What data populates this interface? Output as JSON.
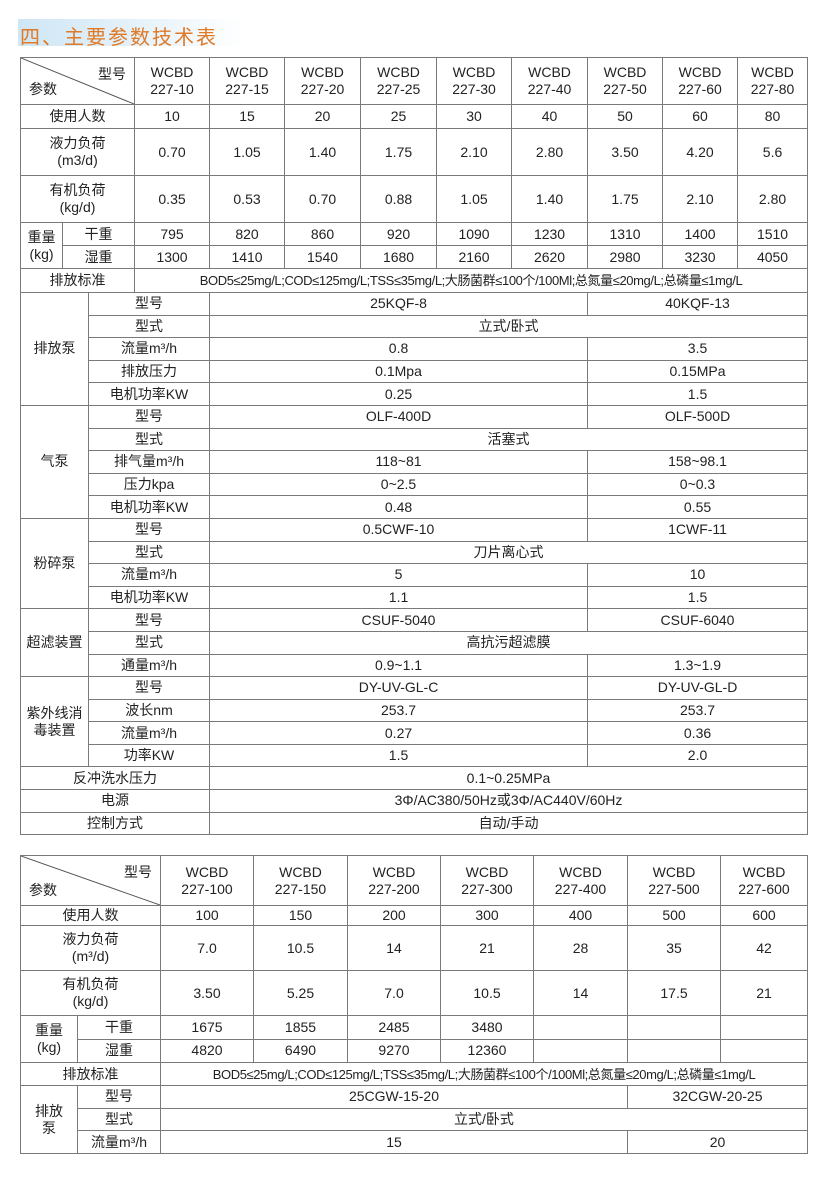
{
  "title": "四、主要参数技术表",
  "table1": {
    "header": {
      "model": "型号",
      "param": "参数",
      "models": [
        "WCBD\n227-10",
        "WCBD\n227-15",
        "WCBD\n227-20",
        "WCBD\n227-25",
        "WCBD\n227-30",
        "WCBD\n227-40",
        "WCBD\n227-50",
        "WCBD\n227-60",
        "WCBD\n227-80"
      ]
    },
    "rows": [
      {
        "label": "使用人数",
        "values": [
          "10",
          "15",
          "20",
          "25",
          "30",
          "40",
          "50",
          "60",
          "80"
        ],
        "tall": false
      },
      {
        "label": "液力负荷\n(m3/d)",
        "values": [
          "0.70",
          "1.05",
          "1.40",
          "1.75",
          "2.10",
          "2.80",
          "3.50",
          "4.20",
          "5.6"
        ],
        "tall": true
      },
      {
        "label": "有机负荷\n(kg/d)",
        "values": [
          "0.35",
          "0.53",
          "0.70",
          "0.88",
          "1.05",
          "1.40",
          "1.75",
          "2.10",
          "2.80"
        ],
        "tall": true
      }
    ],
    "weight": {
      "label": "重量\n(kg)",
      "dry": {
        "label": "干重",
        "values": [
          "795",
          "820",
          "860",
          "920",
          "1090",
          "1230",
          "1310",
          "1400",
          "1510"
        ]
      },
      "wet": {
        "label": "湿重",
        "values": [
          "1300",
          "1410",
          "1540",
          "1680",
          "2160",
          "2620",
          "2980",
          "3230",
          "4050"
        ]
      }
    },
    "standard": {
      "label": "排放标准",
      "value": "BOD5≤25mg/L;COD≤125mg/L;TSS≤35mg/L;大肠菌群≤100个/100Ml;总氮量≤20mg/L;总磷量≤1mg/L"
    },
    "groups": [
      {
        "label": "排放泵",
        "items": [
          {
            "label": "型号",
            "values": [
              "25KQF-8",
              "40KQF-13"
            ]
          },
          {
            "label": "型式",
            "value": "立式/卧式"
          },
          {
            "label": "流量m³/h",
            "values": [
              "0.8",
              "3.5"
            ]
          },
          {
            "label": "排放压力",
            "values": [
              "0.1Mpa",
              "0.15MPa"
            ]
          },
          {
            "label": "电机功率KW",
            "values": [
              "0.25",
              "1.5"
            ]
          }
        ]
      },
      {
        "label": "气泵",
        "items": [
          {
            "label": "型号",
            "values": [
              "OLF-400D",
              "OLF-500D"
            ]
          },
          {
            "label": "型式",
            "value": "活塞式"
          },
          {
            "label": "排气量m³/h",
            "values": [
              "118~81",
              "158~98.1"
            ]
          },
          {
            "label": "压力kpa",
            "values": [
              "0~2.5",
              "0~0.3"
            ]
          },
          {
            "label": "电机功率KW",
            "values": [
              "0.48",
              "0.55"
            ]
          }
        ]
      },
      {
        "label": "粉碎泵",
        "items": [
          {
            "label": "型号",
            "values": [
              "0.5CWF-10",
              "1CWF-11"
            ]
          },
          {
            "label": "型式",
            "value": "刀片离心式"
          },
          {
            "label": "流量m³/h",
            "values": [
              "5",
              "10"
            ]
          },
          {
            "label": "电机功率KW",
            "values": [
              "1.1",
              "1.5"
            ]
          }
        ]
      },
      {
        "label": "超滤装置",
        "items": [
          {
            "label": "型号",
            "values": [
              "CSUF-5040",
              "CSUF-6040"
            ]
          },
          {
            "label": "型式",
            "value": "高抗污超滤膜"
          },
          {
            "label": "通量m³/h",
            "values": [
              "0.9~1.1",
              "1.3~1.9"
            ]
          }
        ]
      },
      {
        "label": "紫外线消\n毒装置",
        "items": [
          {
            "label": "型号",
            "values": [
              "DY-UV-GL-C",
              "DY-UV-GL-D"
            ]
          },
          {
            "label": "波长nm",
            "values": [
              "253.7",
              "253.7"
            ]
          },
          {
            "label": "流量m³/h",
            "values": [
              "0.27",
              "0.36"
            ]
          },
          {
            "label": "功率KW",
            "values": [
              "1.5",
              "2.0"
            ]
          }
        ]
      }
    ],
    "footer": [
      {
        "label": "反冲洗水压力",
        "value": "0.1~0.25MPa"
      },
      {
        "label": "电源",
        "value": "3Φ/AC380/50Hz或3Φ/AC440V/60Hz"
      },
      {
        "label": "控制方式",
        "value": "自动/手动"
      }
    ]
  },
  "table2": {
    "header": {
      "model": "型号",
      "param": "参数",
      "models": [
        "WCBD\n227-100",
        "WCBD\n227-150",
        "WCBD\n227-200",
        "WCBD\n227-300",
        "WCBD\n227-400",
        "WCBD\n227-500",
        "WCBD\n227-600"
      ]
    },
    "rows": [
      {
        "label": "使用人数",
        "values": [
          "100",
          "150",
          "200",
          "300",
          "400",
          "500",
          "600"
        ],
        "tall": false
      },
      {
        "label": "液力负荷\n(m³/d)",
        "values": [
          "7.0",
          "10.5",
          "14",
          "21",
          "28",
          "35",
          "42"
        ],
        "tall": true
      },
      {
        "label": "有机负荷\n(kg/d)",
        "values": [
          "3.50",
          "5.25",
          "7.0",
          "10.5",
          "14",
          "17.5",
          "21"
        ],
        "tall": true
      }
    ],
    "weight": {
      "label": "重量\n(kg)",
      "dry": {
        "label": "干重",
        "values": [
          "1675",
          "1855",
          "2485",
          "3480",
          "",
          "",
          ""
        ]
      },
      "wet": {
        "label": "湿重",
        "values": [
          "4820",
          "6490",
          "9270",
          "12360",
          "",
          "",
          ""
        ]
      }
    },
    "standard": {
      "label": "排放标准",
      "value": "BOD5≤25mg/L;COD≤125mg/L;TSS≤35mg/L;大肠菌群≤100个/100Ml;总氮量≤20mg/L;总磷量≤1mg/L"
    },
    "groups": [
      {
        "label": "排放\n泵",
        "items": [
          {
            "label": "型号",
            "values": [
              "25CGW-15-20",
              "32CGW-20-25"
            ]
          },
          {
            "label": "型式",
            "value": "立式/卧式"
          },
          {
            "label": "流量m³/h",
            "values": [
              "15",
              "20"
            ]
          }
        ]
      }
    ],
    "footer": []
  }
}
